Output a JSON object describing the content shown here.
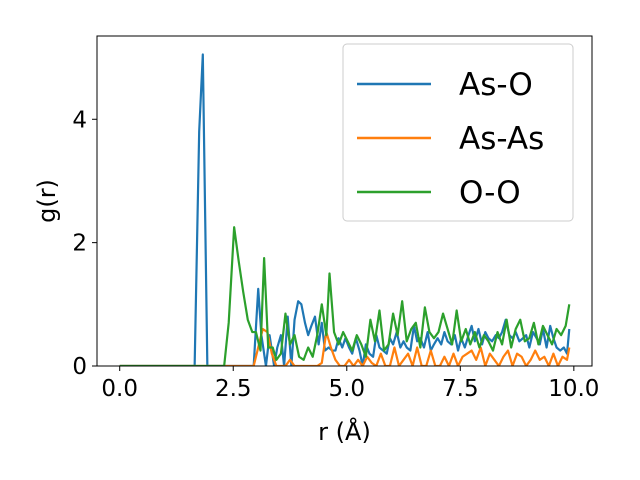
{
  "chart_data": {
    "type": "line",
    "title": "",
    "xlabel": "r (Å)",
    "ylabel": "g(r)",
    "xlim": [
      -0.5,
      10.4
    ],
    "ylim": [
      0,
      5.35
    ],
    "xticks": [
      0.0,
      2.5,
      5.0,
      7.5,
      10.0
    ],
    "xtick_labels": [
      "0.0",
      "2.5",
      "5.0",
      "7.5",
      "10.0"
    ],
    "yticks": [
      0,
      2,
      4
    ],
    "ytick_labels": [
      "0",
      "2",
      "4"
    ],
    "grid": false,
    "legend_position": "upper right",
    "series": [
      {
        "name": "As-O",
        "color": "#1f77b4",
        "x": [
          0.0,
          0.5,
          1.0,
          1.5,
          1.65,
          1.75,
          1.83,
          1.93,
          2.0,
          2.5,
          2.95,
          3.05,
          3.12,
          3.22,
          3.3,
          3.4,
          3.47,
          3.55,
          3.62,
          3.7,
          3.78,
          3.85,
          3.93,
          4.0,
          4.08,
          4.15,
          4.22,
          4.3,
          4.38,
          4.45,
          4.52,
          4.6,
          4.68,
          4.75,
          4.82,
          4.9,
          4.97,
          5.05,
          5.12,
          5.2,
          5.28,
          5.35,
          5.42,
          5.5,
          5.58,
          5.65,
          5.72,
          5.8,
          5.88,
          5.95,
          6.02,
          6.1,
          6.18,
          6.25,
          6.32,
          6.4,
          6.48,
          6.55,
          6.62,
          6.7,
          6.78,
          6.85,
          6.92,
          7.0,
          7.08,
          7.15,
          7.22,
          7.3,
          7.38,
          7.45,
          7.52,
          7.6,
          7.68,
          7.75,
          7.82,
          7.9,
          7.98,
          8.05,
          8.12,
          8.2,
          8.28,
          8.35,
          8.42,
          8.5,
          8.58,
          8.65,
          8.72,
          8.8,
          8.88,
          8.95,
          9.02,
          9.1,
          9.18,
          9.25,
          9.32,
          9.4,
          9.48,
          9.55,
          9.62,
          9.7,
          9.78,
          9.85,
          9.9
        ],
        "y": [
          0,
          0,
          0,
          0,
          0,
          3.8,
          5.05,
          0,
          0,
          0,
          0,
          1.25,
          0.5,
          0,
          0.5,
          0,
          0.3,
          0.5,
          0,
          0.8,
          0,
          0.75,
          1.05,
          1.0,
          0.7,
          0.5,
          0.65,
          0.8,
          0.35,
          0.7,
          0.25,
          0.3,
          0.25,
          0.25,
          0.45,
          0.3,
          0.45,
          0.3,
          0.2,
          0.45,
          0.25,
          0,
          0.35,
          0.2,
          0.15,
          0.5,
          0.3,
          0.25,
          0.2,
          0.45,
          0.35,
          0.55,
          0.3,
          0.4,
          0.3,
          0.25,
          0.65,
          0.4,
          0.45,
          0.3,
          0.55,
          0.25,
          0.35,
          0.45,
          0.35,
          0.55,
          0.4,
          0.35,
          0.5,
          0.25,
          0.45,
          0.3,
          0.5,
          0.65,
          0.4,
          0.6,
          0.35,
          0.55,
          0.45,
          0.4,
          0.5,
          0.45,
          0.55,
          0.75,
          0.5,
          0.45,
          0.55,
          0.4,
          0.45,
          0.5,
          0.3,
          0.55,
          0.45,
          0.35,
          0.6,
          0.3,
          0.65,
          0.45,
          0.3,
          0.25,
          0.3,
          0.2,
          0.6
        ]
      },
      {
        "name": "As-As",
        "color": "#ff7f0e",
        "x": [
          0.0,
          0.5,
          1.0,
          1.5,
          2.0,
          2.5,
          2.95,
          3.05,
          3.15,
          3.25,
          3.35,
          3.45,
          3.55,
          3.65,
          3.75,
          3.85,
          3.95,
          4.05,
          4.15,
          4.25,
          4.35,
          4.45,
          4.55,
          4.65,
          4.75,
          4.85,
          4.95,
          5.05,
          5.15,
          5.25,
          5.35,
          5.45,
          5.55,
          5.65,
          5.75,
          5.85,
          5.95,
          6.05,
          6.15,
          6.25,
          6.35,
          6.45,
          6.55,
          6.65,
          6.75,
          6.85,
          6.95,
          7.05,
          7.15,
          7.25,
          7.35,
          7.45,
          7.55,
          7.65,
          7.75,
          7.85,
          7.95,
          8.05,
          8.15,
          8.25,
          8.35,
          8.45,
          8.55,
          8.65,
          8.75,
          8.85,
          8.95,
          9.05,
          9.15,
          9.25,
          9.35,
          9.45,
          9.55,
          9.65,
          9.75,
          9.85,
          9.9
        ],
        "y": [
          0,
          0,
          0,
          0,
          0,
          0,
          0,
          0.3,
          0.6,
          0.55,
          0.2,
          0,
          0,
          0,
          0.1,
          0,
          0,
          0,
          0,
          0,
          0,
          0.05,
          0.55,
          0.3,
          0.1,
          0,
          0,
          0.1,
          0,
          0.1,
          0,
          0.15,
          0.05,
          0,
          0.2,
          0,
          0,
          0.3,
          0,
          0.1,
          0.2,
          0,
          0.3,
          0,
          0,
          0.25,
          0,
          0,
          0.15,
          0,
          0.2,
          0,
          0.15,
          0.2,
          0.25,
          0.1,
          0.3,
          0,
          0.2,
          0.1,
          0,
          0.15,
          0.25,
          0,
          0.2,
          0.15,
          0,
          0.1,
          0.25,
          0.1,
          0.15,
          0,
          0.2,
          0,
          0.15,
          0.1,
          0.3
        ]
      },
      {
        "name": "O-O",
        "color": "#2ca02c",
        "x": [
          0.0,
          0.5,
          1.0,
          1.5,
          2.0,
          2.3,
          2.4,
          2.52,
          2.62,
          2.72,
          2.82,
          2.92,
          3.0,
          3.1,
          3.18,
          3.27,
          3.37,
          3.45,
          3.55,
          3.65,
          3.75,
          3.85,
          3.95,
          4.05,
          4.15,
          4.25,
          4.35,
          4.45,
          4.55,
          4.62,
          4.72,
          4.82,
          4.92,
          5.02,
          5.12,
          5.22,
          5.32,
          5.42,
          5.52,
          5.62,
          5.72,
          5.82,
          5.92,
          6.02,
          6.12,
          6.22,
          6.32,
          6.42,
          6.52,
          6.62,
          6.72,
          6.82,
          6.92,
          7.02,
          7.12,
          7.22,
          7.32,
          7.42,
          7.52,
          7.62,
          7.72,
          7.82,
          7.92,
          8.02,
          8.12,
          8.22,
          8.32,
          8.42,
          8.52,
          8.62,
          8.72,
          8.82,
          8.92,
          9.02,
          9.12,
          9.22,
          9.32,
          9.42,
          9.52,
          9.62,
          9.72,
          9.82,
          9.9
        ],
        "y": [
          0,
          0,
          0,
          0,
          0,
          0,
          0.7,
          2.25,
          1.7,
          1.2,
          0.75,
          0.55,
          0.55,
          0.25,
          1.75,
          0.3,
          0.3,
          0.1,
          0.2,
          0.85,
          0.35,
          0.5,
          0.15,
          0.1,
          0.3,
          0.15,
          0.5,
          1.0,
          0.5,
          1.5,
          0.55,
          0.35,
          0.55,
          0.4,
          0.25,
          0.5,
          0.35,
          0.15,
          0.75,
          0.4,
          0.9,
          0.25,
          0.35,
          0.85,
          0.5,
          1.05,
          0.4,
          0.6,
          0.7,
          0.3,
          0.95,
          0.55,
          0.45,
          0.55,
          0.85,
          0.6,
          0.35,
          0.9,
          0.4,
          0.6,
          0.35,
          0.55,
          0.3,
          0.5,
          0.4,
          0.25,
          0.55,
          0.35,
          0.75,
          0.3,
          0.6,
          0.75,
          0.4,
          0.45,
          0.7,
          0.35,
          0.65,
          0.5,
          0.35,
          0.6,
          0.5,
          0.65,
          1.0
        ]
      }
    ]
  }
}
